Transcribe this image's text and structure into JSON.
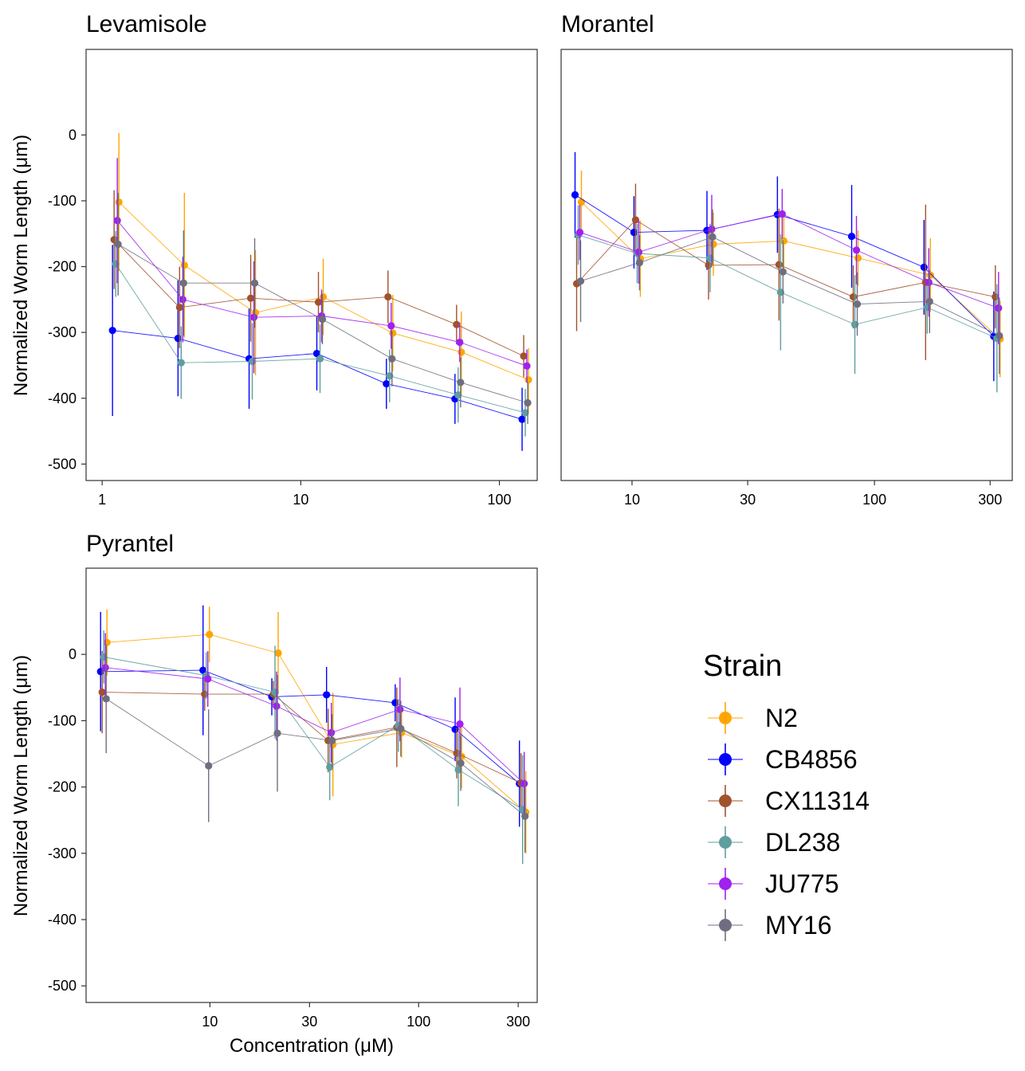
{
  "figure": {
    "xlabel": "Concentration (μM)",
    "ylabel": "Normalized Worm Length (μm)"
  },
  "legend": {
    "title": "Strain",
    "items": [
      {
        "label": "N2",
        "color": "#FFA500"
      },
      {
        "label": "CB4856",
        "color": "#0000FF"
      },
      {
        "label": "CX11314",
        "color": "#A0522D"
      },
      {
        "label": "DL238",
        "color": "#5F9EA0"
      },
      {
        "label": "JU775",
        "color": "#A020F0"
      },
      {
        "label": "MY16",
        "color": "#6E6E80"
      }
    ]
  },
  "chart_data": [
    {
      "type": "line",
      "title": "Levamisole",
      "x_scale": "log",
      "xlim": [
        0.83,
        155
      ],
      "ylim": [
        -525,
        130
      ],
      "xticks": [
        1,
        10,
        100
      ],
      "xtick_labels": [
        "1",
        "10",
        "100"
      ],
      "yticks": [
        0,
        -100,
        -200,
        -300,
        -400,
        -500
      ],
      "ytick_labels": [
        "0",
        "-100",
        "-200",
        "-300",
        "-400",
        "-500"
      ],
      "x": [
        1.17,
        2.5,
        5.7,
        12.5,
        28,
        62,
        135
      ],
      "series": [
        {
          "name": "N2",
          "values": [
            -102,
            -198,
            -270,
            -246,
            -301,
            -330,
            -372
          ],
          "err": [
            105,
            110,
            95,
            58,
            58,
            62,
            48
          ]
        },
        {
          "name": "CB4856",
          "values": [
            -297,
            -309,
            -340,
            -332,
            -378,
            -401,
            -432
          ],
          "err": [
            130,
            88,
            76,
            56,
            38,
            38,
            48
          ]
        },
        {
          "name": "CX11314",
          "values": [
            -159,
            -262,
            -248,
            -254,
            -246,
            -288,
            -336
          ],
          "err": [
            75,
            62,
            66,
            46,
            40,
            30,
            32
          ]
        },
        {
          "name": "DL238",
          "values": [
            -196,
            -346,
            -344,
            -340,
            -366,
            -395,
            -422
          ],
          "err": [
            50,
            55,
            58,
            52,
            40,
            42,
            36
          ]
        },
        {
          "name": "JU775",
          "values": [
            -130,
            -250,
            -277,
            -275,
            -290,
            -315,
            -351
          ],
          "err": [
            95,
            65,
            85,
            40,
            35,
            30,
            25
          ]
        },
        {
          "name": "MY16",
          "values": [
            -166,
            -225,
            -225,
            -280,
            -340,
            -376,
            -407
          ],
          "err": [
            78,
            80,
            68,
            38,
            42,
            38,
            32
          ]
        }
      ]
    },
    {
      "type": "line",
      "title": "Morantel",
      "x_scale": "log",
      "xlim": [
        5.1,
        370
      ],
      "ylim": [
        -525,
        130
      ],
      "xticks": [
        10,
        30,
        100,
        300
      ],
      "xtick_labels": [
        "10",
        "30",
        "100",
        "300"
      ],
      "yticks": [],
      "ytick_labels": [],
      "x": [
        6,
        10.5,
        21,
        41,
        83,
        165,
        320
      ],
      "series": [
        {
          "name": "N2",
          "values": [
            -102,
            -188,
            -166,
            -161,
            -187,
            -213,
            -310
          ],
          "err": [
            48,
            58,
            48,
            46,
            42,
            56,
            58
          ]
        },
        {
          "name": "CB4856",
          "values": [
            -91,
            -148,
            -145,
            -121,
            -154,
            -201,
            -306
          ],
          "err": [
            65,
            55,
            60,
            58,
            78,
            72,
            68
          ]
        },
        {
          "name": "CX11314",
          "values": [
            -226,
            -129,
            -198,
            -197,
            -246,
            -224,
            -246
          ],
          "err": [
            72,
            55,
            52,
            85,
            48,
            118,
            48
          ]
        },
        {
          "name": "DL238",
          "values": [
            -152,
            -180,
            -187,
            -239,
            -288,
            -262,
            -309
          ],
          "err": [
            45,
            45,
            52,
            88,
            75,
            40,
            82
          ]
        },
        {
          "name": "JU775",
          "values": [
            -148,
            -178,
            -143,
            -120,
            -175,
            -224,
            -263
          ],
          "err": [
            42,
            48,
            52,
            38,
            52,
            52,
            55
          ]
        },
        {
          "name": "MY16",
          "values": [
            -222,
            -194,
            -155,
            -208,
            -257,
            -253,
            -305
          ],
          "err": [
            62,
            42,
            42,
            48,
            48,
            48,
            58
          ]
        }
      ]
    },
    {
      "type": "line",
      "title": "Pyrantel",
      "x_scale": "log",
      "xlim": [
        2.55,
        370
      ],
      "ylim": [
        -525,
        130
      ],
      "xticks": [
        10,
        30,
        100,
        300
      ],
      "xtick_labels": [
        "10",
        "30",
        "100",
        "300"
      ],
      "yticks": [
        0,
        -100,
        -200,
        -300,
        -400,
        -500
      ],
      "ytick_labels": [
        "0",
        "-100",
        "-200",
        "-300",
        "-400",
        "-500"
      ],
      "x": [
        3.1,
        9.6,
        20.5,
        37.5,
        80,
        155,
        315
      ],
      "series": [
        {
          "name": "N2",
          "values": [
            18,
            30,
            2,
            -136,
            -118,
            -154,
            -238
          ],
          "err": [
            50,
            42,
            62,
            78,
            38,
            48,
            62
          ]
        },
        {
          "name": "CB4856",
          "values": [
            -26,
            -24,
            -64,
            -61,
            -73,
            -113,
            -195
          ],
          "err": [
            90,
            98,
            28,
            42,
            28,
            48,
            65
          ]
        },
        {
          "name": "CX11314",
          "values": [
            -57,
            -60,
            -60,
            -130,
            -110,
            -149,
            -194
          ],
          "err": [
            62,
            25,
            20,
            48,
            60,
            38,
            45
          ]
        },
        {
          "name": "DL238",
          "values": [
            -4,
            -32,
            -57,
            -170,
            -107,
            -174,
            -234
          ],
          "err": [
            40,
            35,
            70,
            50,
            40,
            55,
            82
          ]
        },
        {
          "name": "JU775",
          "values": [
            -20,
            -37,
            -78,
            -118,
            -83,
            -105,
            -195
          ],
          "err": [
            52,
            42,
            52,
            45,
            48,
            55,
            48
          ]
        },
        {
          "name": "MY16",
          "values": [
            -67,
            -168,
            -119,
            -130,
            -112,
            -164,
            -244
          ],
          "err": [
            82,
            85,
            88,
            40,
            42,
            42,
            55
          ]
        }
      ]
    }
  ]
}
